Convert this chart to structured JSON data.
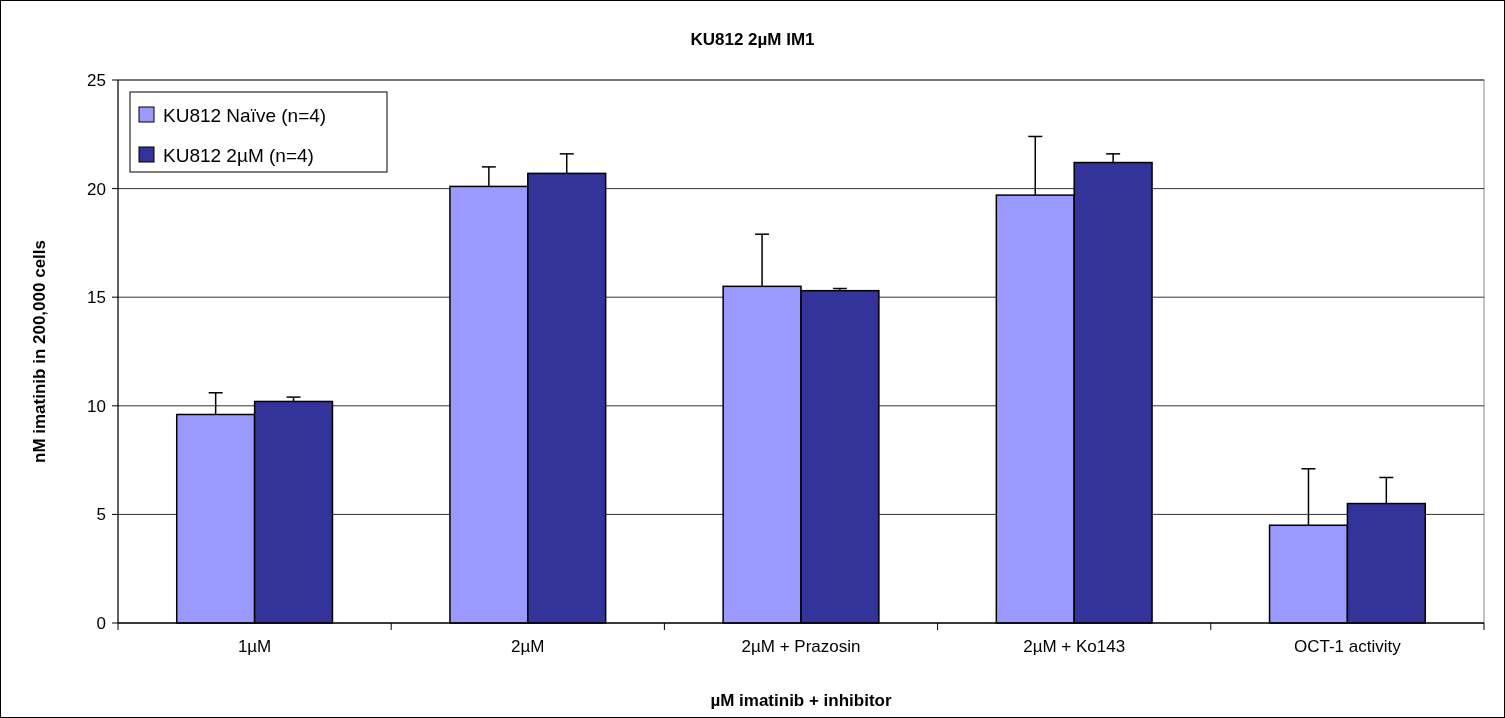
{
  "chart_data": {
    "type": "bar",
    "title": "KU812 2µM IM1",
    "xlabel": "µM imatinib + inhibitor",
    "ylabel": "nM imatinib in 200,000 cells",
    "categories": [
      "1µM",
      "2µM",
      "2µM + Prazosin",
      "2µM + Ko143",
      "OCT-1 activity"
    ],
    "series": [
      {
        "name": "KU812 Naïve (n=4)",
        "color": "#9999ff",
        "values": [
          9.6,
          20.1,
          15.5,
          19.7,
          4.5
        ],
        "errors": [
          [
            9.6,
            10.6
          ],
          [
            20.1,
            21
          ],
          [
            15.5,
            17.9
          ],
          [
            19.7,
            22.4
          ],
          [
            4.5,
            7.1
          ]
        ]
      },
      {
        "name": "KU812 2µM (n=4)",
        "color": "#333399",
        "values": [
          10.2,
          20.7,
          15.3,
          21.2,
          5.5
        ],
        "errors": [
          [
            10.2,
            10.4
          ],
          [
            20.7,
            21.6
          ],
          [
            15.3,
            15.4
          ],
          [
            21.2,
            21.6
          ],
          [
            5.5,
            6.7
          ]
        ]
      }
    ],
    "ylim": [
      0,
      25
    ],
    "yticks": [
      0,
      5,
      10,
      15,
      20,
      25
    ],
    "grid": "y",
    "legend": "top left"
  }
}
